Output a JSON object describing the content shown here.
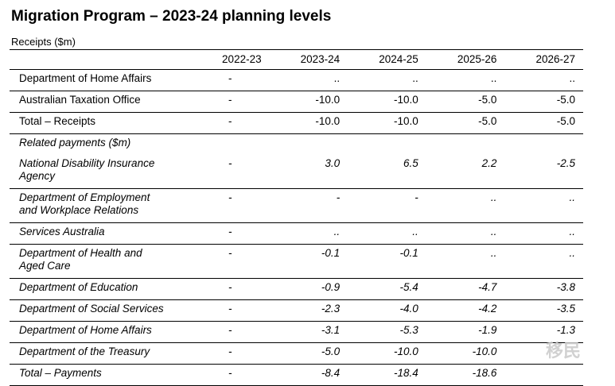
{
  "title": "Migration Program – 2023-24 planning levels",
  "subtitle": "Receipts ($m)",
  "columns": [
    "",
    "2022-23",
    "2023-24",
    "2024-25",
    "2025-26",
    "2026-27"
  ],
  "rows": [
    {
      "label": "Department of Home Affairs",
      "values": [
        "-",
        "..",
        "..",
        "..",
        ".."
      ],
      "italic": false,
      "section": false
    },
    {
      "label": "Australian Taxation Office",
      "values": [
        "-",
        "-10.0",
        "-10.0",
        "-5.0",
        "-5.0"
      ],
      "italic": false,
      "section": false
    },
    {
      "label": "Total – Receipts",
      "values": [
        "-",
        "-10.0",
        "-10.0",
        "-5.0",
        "-5.0"
      ],
      "italic": false,
      "section": false
    },
    {
      "label": "Related payments ($m)",
      "values": [
        "",
        "",
        "",
        "",
        ""
      ],
      "italic": true,
      "section": true
    },
    {
      "label": "National Disability Insurance Agency",
      "values": [
        "-",
        "3.0",
        "6.5",
        "2.2",
        "-2.5"
      ],
      "italic": true,
      "section": false
    },
    {
      "label": "Department of Employment and Workplace Relations",
      "values": [
        "-",
        "-",
        "-",
        "..",
        ".."
      ],
      "italic": true,
      "section": false
    },
    {
      "label": "Services Australia",
      "values": [
        "-",
        "..",
        "..",
        "..",
        ".."
      ],
      "italic": true,
      "section": false
    },
    {
      "label": "Department of Health and Aged Care",
      "values": [
        "-",
        "-0.1",
        "-0.1",
        "..",
        ".."
      ],
      "italic": true,
      "section": false
    },
    {
      "label": "Department of Education",
      "values": [
        "-",
        "-0.9",
        "-5.4",
        "-4.7",
        "-3.8"
      ],
      "italic": true,
      "section": false
    },
    {
      "label": "Department of Social Services",
      "values": [
        "-",
        "-2.3",
        "-4.0",
        "-4.2",
        "-3.5"
      ],
      "italic": true,
      "section": false
    },
    {
      "label": "Department of Home Affairs",
      "values": [
        "-",
        "-3.1",
        "-5.3",
        "-1.9",
        "-1.3"
      ],
      "italic": true,
      "section": false
    },
    {
      "label": "Department of the Treasury",
      "values": [
        "-",
        "-5.0",
        "-10.0",
        "-10.0",
        ""
      ],
      "italic": true,
      "section": false
    },
    {
      "label": "Total – Payments",
      "values": [
        "-",
        "-8.4",
        "-18.4",
        "-18.6",
        ""
      ],
      "italic": true,
      "section": false
    }
  ],
  "watermark": "移民"
}
